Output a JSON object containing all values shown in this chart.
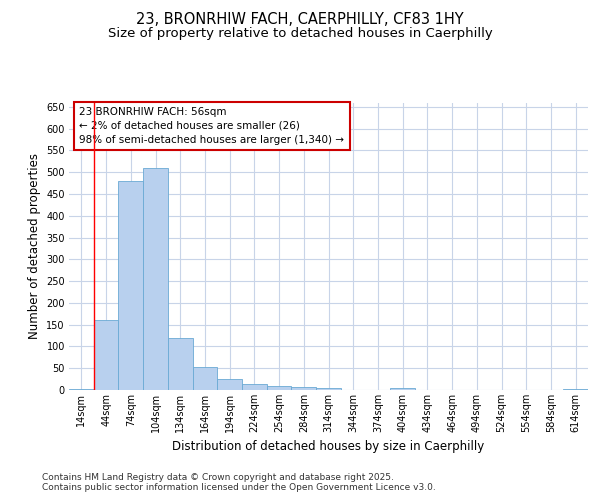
{
  "title_line1": "23, BRONRHIW FACH, CAERPHILLY, CF83 1HY",
  "title_line2": "Size of property relative to detached houses in Caerphilly",
  "xlabel": "Distribution of detached houses by size in Caerphilly",
  "ylabel": "Number of detached properties",
  "categories": [
    "14sqm",
    "44sqm",
    "74sqm",
    "104sqm",
    "134sqm",
    "164sqm",
    "194sqm",
    "224sqm",
    "254sqm",
    "284sqm",
    "314sqm",
    "344sqm",
    "374sqm",
    "404sqm",
    "434sqm",
    "464sqm",
    "494sqm",
    "524sqm",
    "554sqm",
    "584sqm",
    "614sqm"
  ],
  "values": [
    3,
    160,
    480,
    510,
    120,
    52,
    25,
    13,
    10,
    8,
    5,
    0,
    0,
    4,
    0,
    0,
    0,
    0,
    0,
    0,
    2
  ],
  "bar_color": "#b8d0ee",
  "bar_edge_color": "#6aaad4",
  "red_line_index": 1,
  "ylim": [
    0,
    660
  ],
  "yticks": [
    0,
    50,
    100,
    150,
    200,
    250,
    300,
    350,
    400,
    450,
    500,
    550,
    600,
    650
  ],
  "annotation_text": "23 BRONRHIW FACH: 56sqm\n← 2% of detached houses are smaller (26)\n98% of semi-detached houses are larger (1,340) →",
  "annotation_box_color": "#ffffff",
  "annotation_box_edge": "#cc0000",
  "footnote_line1": "Contains HM Land Registry data © Crown copyright and database right 2025.",
  "footnote_line2": "Contains public sector information licensed under the Open Government Licence v3.0.",
  "background_color": "#ffffff",
  "plot_background": "#ffffff",
  "grid_color": "#c8d4e8",
  "title_fontsize": 10.5,
  "subtitle_fontsize": 9.5,
  "tick_fontsize": 7,
  "label_fontsize": 8.5,
  "footnote_fontsize": 6.5
}
